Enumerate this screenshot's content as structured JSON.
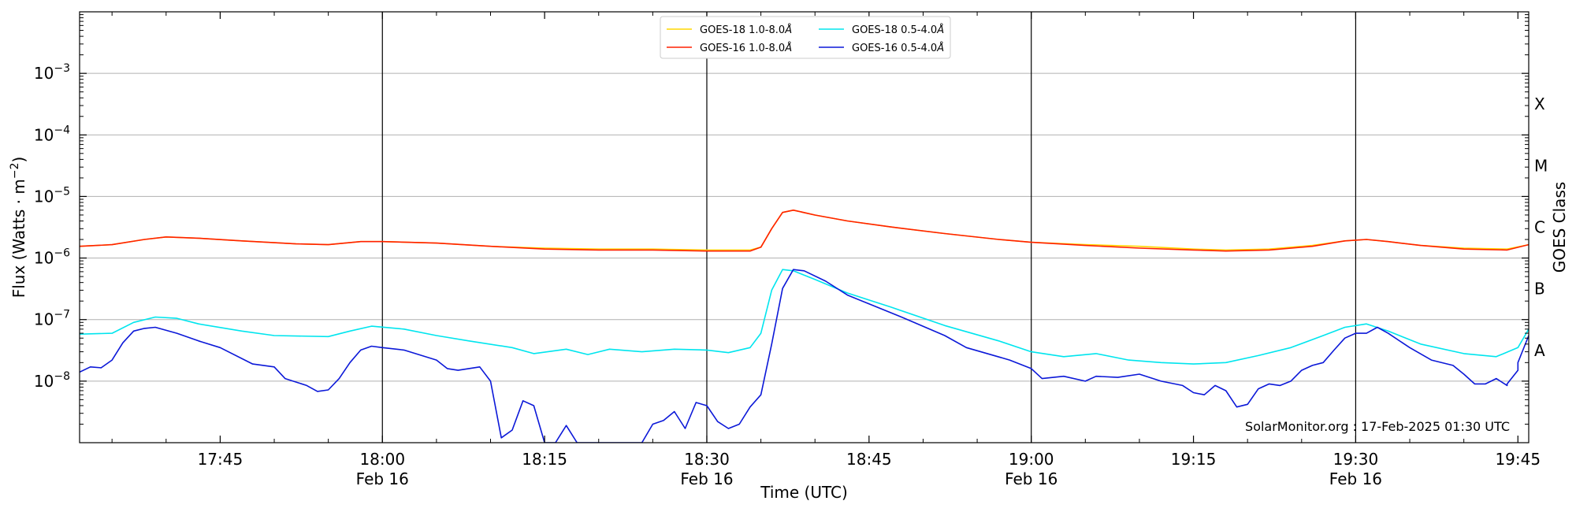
{
  "chart_data": {
    "type": "line",
    "x_unit": "time of day (UTC)",
    "x_range": [
      "17:32",
      "19:46"
    ],
    "y_scale": "log",
    "y_range": [
      1e-09,
      0.01
    ],
    "grid": "horizontal",
    "legend_position": "top-center",
    "xlabel": "Time (UTC)",
    "ylabel": "Flux (Watts · m",
    "ylabel_sup": "−2",
    "ylabel_end": ")",
    "right_label": "GOES Class",
    "classes": [
      {
        "label": "A",
        "flux": 3.16e-08
      },
      {
        "label": "B",
        "flux": 3.16e-07
      },
      {
        "label": "C",
        "flux": 3.16e-06
      },
      {
        "label": "M",
        "flux": 3.16e-05
      },
      {
        "label": "X",
        "flux": 0.000316
      }
    ],
    "y_ticks": [
      {
        "value": 1e-08,
        "base": "10",
        "exp": "−8"
      },
      {
        "value": 1e-07,
        "base": "10",
        "exp": "−7"
      },
      {
        "value": 1e-06,
        "base": "10",
        "exp": "−6"
      },
      {
        "value": 1e-05,
        "base": "10",
        "exp": "−5"
      },
      {
        "value": 0.0001,
        "base": "10",
        "exp": "−4"
      },
      {
        "value": 0.001,
        "base": "10",
        "exp": "−3"
      }
    ],
    "x_ticks": [
      {
        "time": "17:45",
        "label": "17:45",
        "date": ""
      },
      {
        "time": "18:00",
        "label": "18:00",
        "date": "Feb 16"
      },
      {
        "time": "18:15",
        "label": "18:15",
        "date": ""
      },
      {
        "time": "18:30",
        "label": "18:30",
        "date": "Feb 16"
      },
      {
        "time": "18:45",
        "label": "18:45",
        "date": ""
      },
      {
        "time": "19:00",
        "label": "19:00",
        "date": "Feb 16"
      },
      {
        "time": "19:15",
        "label": "19:15",
        "date": ""
      },
      {
        "time": "19:30",
        "label": "19:30",
        "date": "Feb 16"
      },
      {
        "time": "19:45",
        "label": "19:45",
        "date": ""
      }
    ],
    "vertical_lines": [
      "18:00",
      "18:30",
      "19:00",
      "19:30"
    ],
    "annotation": "SolarMonitor.org : 17-Feb-2025 01:30 UTC",
    "series": [
      {
        "name": "GOES-18 1.0-8.0",
        "name_unit": "Å",
        "color": "#ffd700",
        "points": [
          [
            "17:32",
            1.55e-06
          ],
          [
            "17:35",
            1.65e-06
          ],
          [
            "17:38",
            2e-06
          ],
          [
            "17:40",
            2.2e-06
          ],
          [
            "17:43",
            2.1e-06
          ],
          [
            "17:47",
            1.9e-06
          ],
          [
            "17:52",
            1.7e-06
          ],
          [
            "17:55",
            1.65e-06
          ],
          [
            "17:58",
            1.85e-06
          ],
          [
            "18:00",
            1.85e-06
          ],
          [
            "18:05",
            1.75e-06
          ],
          [
            "18:10",
            1.55e-06
          ],
          [
            "18:15",
            1.45e-06
          ],
          [
            "18:20",
            1.4e-06
          ],
          [
            "18:25",
            1.4e-06
          ],
          [
            "18:30",
            1.35e-06
          ],
          [
            "18:34",
            1.35e-06
          ],
          [
            "18:35",
            1.5e-06
          ],
          [
            "18:36",
            3e-06
          ],
          [
            "18:37",
            5.5e-06
          ],
          [
            "18:38",
            6e-06
          ],
          [
            "18:40",
            5e-06
          ],
          [
            "18:43",
            4e-06
          ],
          [
            "18:47",
            3.2e-06
          ],
          [
            "18:52",
            2.5e-06
          ],
          [
            "18:57",
            2e-06
          ],
          [
            "19:00",
            1.8e-06
          ],
          [
            "19:05",
            1.65e-06
          ],
          [
            "19:10",
            1.55e-06
          ],
          [
            "19:15",
            1.4e-06
          ],
          [
            "19:18",
            1.35e-06
          ],
          [
            "19:22",
            1.4e-06
          ],
          [
            "19:26",
            1.6e-06
          ],
          [
            "19:29",
            1.9e-06
          ],
          [
            "19:31",
            2e-06
          ],
          [
            "19:33",
            1.85e-06
          ],
          [
            "19:36",
            1.6e-06
          ],
          [
            "19:40",
            1.45e-06
          ],
          [
            "19:44",
            1.4e-06
          ],
          [
            "19:46",
            1.65e-06
          ]
        ]
      },
      {
        "name": "GOES-16 1.0-8.0",
        "name_unit": "Å",
        "color": "#ff2000",
        "points": [
          [
            "17:32",
            1.55e-06
          ],
          [
            "17:35",
            1.65e-06
          ],
          [
            "17:38",
            2e-06
          ],
          [
            "17:40",
            2.2e-06
          ],
          [
            "17:43",
            2.1e-06
          ],
          [
            "17:47",
            1.9e-06
          ],
          [
            "17:52",
            1.7e-06
          ],
          [
            "17:55",
            1.65e-06
          ],
          [
            "17:58",
            1.85e-06
          ],
          [
            "18:00",
            1.85e-06
          ],
          [
            "18:05",
            1.75e-06
          ],
          [
            "18:10",
            1.55e-06
          ],
          [
            "18:15",
            1.4e-06
          ],
          [
            "18:20",
            1.35e-06
          ],
          [
            "18:25",
            1.35e-06
          ],
          [
            "18:30",
            1.3e-06
          ],
          [
            "18:34",
            1.3e-06
          ],
          [
            "18:35",
            1.5e-06
          ],
          [
            "18:36",
            3e-06
          ],
          [
            "18:37",
            5.5e-06
          ],
          [
            "18:38",
            6e-06
          ],
          [
            "18:40",
            5e-06
          ],
          [
            "18:43",
            4e-06
          ],
          [
            "18:47",
            3.2e-06
          ],
          [
            "18:52",
            2.5e-06
          ],
          [
            "18:57",
            2e-06
          ],
          [
            "19:00",
            1.8e-06
          ],
          [
            "19:05",
            1.6e-06
          ],
          [
            "19:10",
            1.45e-06
          ],
          [
            "19:15",
            1.35e-06
          ],
          [
            "19:18",
            1.3e-06
          ],
          [
            "19:22",
            1.35e-06
          ],
          [
            "19:26",
            1.55e-06
          ],
          [
            "19:29",
            1.9e-06
          ],
          [
            "19:31",
            2e-06
          ],
          [
            "19:33",
            1.85e-06
          ],
          [
            "19:36",
            1.6e-06
          ],
          [
            "19:40",
            1.4e-06
          ],
          [
            "19:44",
            1.35e-06
          ],
          [
            "19:46",
            1.65e-06
          ]
        ]
      },
      {
        "name": "GOES-18 0.5-4.0",
        "name_unit": "Å",
        "color": "#00e5ee",
        "points": [
          [
            "17:32",
            5.8e-08
          ],
          [
            "17:35",
            6e-08
          ],
          [
            "17:37",
            9e-08
          ],
          [
            "17:39",
            1.1e-07
          ],
          [
            "17:41",
            1.05e-07
          ],
          [
            "17:43",
            8.5e-08
          ],
          [
            "17:47",
            6.5e-08
          ],
          [
            "17:50",
            5.5e-08
          ],
          [
            "17:55",
            5.3e-08
          ],
          [
            "17:57",
            6.5e-08
          ],
          [
            "17:59",
            7.8e-08
          ],
          [
            "18:02",
            7e-08
          ],
          [
            "18:05",
            5.5e-08
          ],
          [
            "18:08",
            4.5e-08
          ],
          [
            "18:12",
            3.5e-08
          ],
          [
            "18:14",
            2.8e-08
          ],
          [
            "18:17",
            3.3e-08
          ],
          [
            "18:19",
            2.7e-08
          ],
          [
            "18:21",
            3.3e-08
          ],
          [
            "18:24",
            3e-08
          ],
          [
            "18:27",
            3.3e-08
          ],
          [
            "18:30",
            3.2e-08
          ],
          [
            "18:32",
            2.9e-08
          ],
          [
            "18:34",
            3.5e-08
          ],
          [
            "18:35",
            6e-08
          ],
          [
            "18:36",
            3e-07
          ],
          [
            "18:37",
            6.5e-07
          ],
          [
            "18:38",
            6.2e-07
          ],
          [
            "18:40",
            4.5e-07
          ],
          [
            "18:43",
            2.7e-07
          ],
          [
            "18:47",
            1.6e-07
          ],
          [
            "18:52",
            8e-08
          ],
          [
            "18:57",
            4.5e-08
          ],
          [
            "19:00",
            3e-08
          ],
          [
            "19:03",
            2.5e-08
          ],
          [
            "19:06",
            2.8e-08
          ],
          [
            "19:09",
            2.2e-08
          ],
          [
            "19:12",
            2e-08
          ],
          [
            "19:15",
            1.9e-08
          ],
          [
            "19:18",
            2e-08
          ],
          [
            "19:21",
            2.6e-08
          ],
          [
            "19:24",
            3.5e-08
          ],
          [
            "19:27",
            5.5e-08
          ],
          [
            "19:29",
            7.5e-08
          ],
          [
            "19:31",
            8.5e-08
          ],
          [
            "19:33",
            6.5e-08
          ],
          [
            "19:36",
            4e-08
          ],
          [
            "19:40",
            2.8e-08
          ],
          [
            "19:43",
            2.5e-08
          ],
          [
            "19:45",
            3.5e-08
          ],
          [
            "19:46",
            7e-08
          ]
        ]
      },
      {
        "name": "GOES-16 0.5-4.0",
        "name_unit": "Å",
        "color": "#0b18d8",
        "points": [
          [
            "17:32",
            1.4e-08
          ],
          [
            "17:33",
            1.7e-08
          ],
          [
            "17:34",
            1.65e-08
          ],
          [
            "17:35",
            2.2e-08
          ],
          [
            "17:36",
            4.2e-08
          ],
          [
            "17:37",
            6.5e-08
          ],
          [
            "17:38",
            7.2e-08
          ],
          [
            "17:39",
            7.5e-08
          ],
          [
            "17:41",
            6e-08
          ],
          [
            "17:43",
            4.5e-08
          ],
          [
            "17:45",
            3.5e-08
          ],
          [
            "17:48",
            1.9e-08
          ],
          [
            "17:50",
            1.7e-08
          ],
          [
            "17:51",
            1.1e-08
          ],
          [
            "17:53",
            8.5e-09
          ],
          [
            "17:54",
            6.8e-09
          ],
          [
            "17:55",
            7.2e-09
          ],
          [
            "17:56",
            1.1e-08
          ],
          [
            "17:57",
            2e-08
          ],
          [
            "17:58",
            3.2e-08
          ],
          [
            "17:59",
            3.7e-08
          ],
          [
            "18:00",
            3.5e-08
          ],
          [
            "18:02",
            3.2e-08
          ],
          [
            "18:05",
            2.2e-08
          ],
          [
            "18:06",
            1.6e-08
          ],
          [
            "18:07",
            1.5e-08
          ],
          [
            "18:09",
            1.7e-08
          ],
          [
            "18:10",
            1e-08
          ],
          [
            "18:11",
            1.2e-09
          ],
          [
            "18:12",
            1.6e-09
          ],
          [
            "18:13",
            4.8e-09
          ],
          [
            "18:14",
            4e-09
          ],
          [
            "18:15",
            1e-09
          ],
          [
            "18:16",
            1e-09
          ],
          [
            "18:17",
            1.9e-09
          ],
          [
            "18:18",
            1e-09
          ],
          [
            "18:24",
            1e-09
          ],
          [
            "18:25",
            2e-09
          ],
          [
            "18:26",
            2.3e-09
          ],
          [
            "18:27",
            3.2e-09
          ],
          [
            "18:28",
            1.7e-09
          ],
          [
            "18:29",
            4.5e-09
          ],
          [
            "18:30",
            4e-09
          ],
          [
            "18:31",
            2.2e-09
          ],
          [
            "18:32",
            1.7e-09
          ],
          [
            "18:33",
            2e-09
          ],
          [
            "18:34",
            3.8e-09
          ],
          [
            "18:35",
            6e-09
          ],
          [
            "18:36",
            4e-08
          ],
          [
            "18:37",
            3.2e-07
          ],
          [
            "18:38",
            6.5e-07
          ],
          [
            "18:39",
            6.2e-07
          ],
          [
            "18:41",
            4.2e-07
          ],
          [
            "18:43",
            2.5e-07
          ],
          [
            "18:45",
            1.8e-07
          ],
          [
            "18:48",
            1.1e-07
          ],
          [
            "18:52",
            5.5e-08
          ],
          [
            "18:54",
            3.5e-08
          ],
          [
            "18:58",
            2.2e-08
          ],
          [
            "19:00",
            1.6e-08
          ],
          [
            "19:01",
            1.1e-08
          ],
          [
            "19:03",
            1.2e-08
          ],
          [
            "19:05",
            1e-08
          ],
          [
            "19:06",
            1.2e-08
          ],
          [
            "19:08",
            1.15e-08
          ],
          [
            "19:10",
            1.3e-08
          ],
          [
            "19:12",
            1e-08
          ],
          [
            "19:14",
            8.5e-09
          ],
          [
            "19:15",
            6.5e-09
          ],
          [
            "19:16",
            6e-09
          ],
          [
            "19:17",
            8.5e-09
          ],
          [
            "19:18",
            7e-09
          ],
          [
            "19:19",
            3.8e-09
          ],
          [
            "19:20",
            4.2e-09
          ],
          [
            "19:21",
            7.5e-09
          ],
          [
            "19:22",
            9e-09
          ],
          [
            "19:23",
            8.5e-09
          ],
          [
            "19:24",
            1e-08
          ],
          [
            "19:25",
            1.5e-08
          ],
          [
            "19:26",
            1.8e-08
          ],
          [
            "19:27",
            2e-08
          ],
          [
            "19:28",
            3.2e-08
          ],
          [
            "19:29",
            5e-08
          ],
          [
            "19:30",
            6e-08
          ],
          [
            "19:31",
            6e-08
          ],
          [
            "19:32",
            7.5e-08
          ],
          [
            "19:33",
            6e-08
          ],
          [
            "19:35",
            3.5e-08
          ],
          [
            "19:37",
            2.2e-08
          ],
          [
            "19:39",
            1.8e-08
          ],
          [
            "19:40",
            1.3e-08
          ],
          [
            "19:41",
            9e-09
          ],
          [
            "19:42",
            9e-09
          ],
          [
            "19:43",
            1.1e-08
          ],
          [
            "19:44",
            8.5e-09
          ],
          [
            "19:44",
            9e-09
          ],
          [
            "19:45",
            1.5e-08
          ],
          [
            "19:45",
            2e-08
          ],
          [
            "19:46",
            5.5e-08
          ]
        ]
      }
    ]
  }
}
